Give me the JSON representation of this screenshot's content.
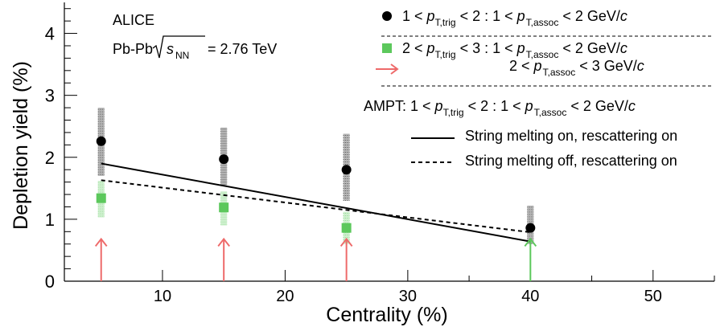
{
  "chart_data": {
    "type": "scatter",
    "xlabel": "Centrality (%)",
    "ylabel": "Depletion yield (%)",
    "xlim": [
      2,
      55
    ],
    "ylim": [
      0,
      4.5
    ],
    "x_ticks": [
      10,
      20,
      30,
      40,
      50
    ],
    "y_ticks": [
      0,
      1,
      2,
      3,
      4
    ],
    "grid": false,
    "legend_position": "top-right",
    "annotations": {
      "experiment": "ALICE",
      "system_prefix": "Pb-Pb",
      "energy_symbol": "s",
      "energy_subscript": "NN",
      "energy_value": "= 2.76 TeV"
    },
    "legend": {
      "series1": {
        "a": "1 < ",
        "pt": "p",
        "trig": "T,trig",
        "b": " < 2 : 1 < ",
        "assoc": "T,assoc",
        "c": " < 2 GeV/",
        "unit": "c"
      },
      "series2": {
        "a": "2 < ",
        "pt": "p",
        "trig": "T,trig",
        "b": " < 3 : 1 < ",
        "assoc": "T,assoc",
        "c": " < 2 GeV/",
        "unit": "c"
      },
      "series2_limit": {
        "a": "2 < ",
        "pt": "p",
        "assoc": "T,assoc",
        "c": " < 3 GeV/",
        "unit": "c"
      },
      "ampt_header": {
        "a": "AMPT: 1 < ",
        "pt": "p",
        "trig": "T,trig",
        "b": " < 2 : 1 < ",
        "assoc": "T,assoc",
        "c": " < 2 GeV/",
        "unit": "c"
      },
      "ampt_on": "String melting on, rescattering on",
      "ampt_off": "String melting off, rescattering on"
    },
    "series": [
      {
        "marker": "circle",
        "color": "#000000",
        "points": [
          {
            "x": 5,
            "y": 2.26,
            "sys_low": 1.7,
            "sys_high": 2.8
          },
          {
            "x": 15,
            "y": 1.97,
            "sys_low": 1.55,
            "sys_high": 2.48
          },
          {
            "x": 25,
            "y": 1.8,
            "sys_low": 1.3,
            "sys_high": 2.38
          },
          {
            "x": 40,
            "y": 0.86,
            "sys_low": 0.6,
            "sys_high": 1.22
          }
        ]
      },
      {
        "marker": "square",
        "color": "#5cc85c",
        "points": [
          {
            "x": 5,
            "y": 1.34,
            "sys_low": 1.03,
            "sys_high": 1.62
          },
          {
            "x": 15,
            "y": 1.19,
            "sys_low": 0.9,
            "sys_high": 1.45
          },
          {
            "x": 25,
            "y": 0.86,
            "sys_low": 0.6,
            "sys_high": 1.12
          }
        ]
      },
      {
        "marker": "arrow-up",
        "color": "#ee6a6a",
        "points": [
          {
            "x": 5,
            "y": 0.5
          },
          {
            "x": 15,
            "y": 0.5
          },
          {
            "x": 25,
            "y": 0.5
          }
        ]
      },
      {
        "marker": "arrow-up",
        "color": "#5cc85c",
        "points": [
          {
            "x": 40,
            "y": 0.5
          }
        ]
      },
      {
        "type": "line",
        "style": "solid",
        "color": "#000000",
        "x": [
          5,
          40
        ],
        "y": [
          1.9,
          0.64
        ]
      },
      {
        "type": "line",
        "style": "dashed",
        "color": "#000000",
        "x": [
          5,
          40
        ],
        "y": [
          1.63,
          0.79
        ]
      }
    ]
  }
}
